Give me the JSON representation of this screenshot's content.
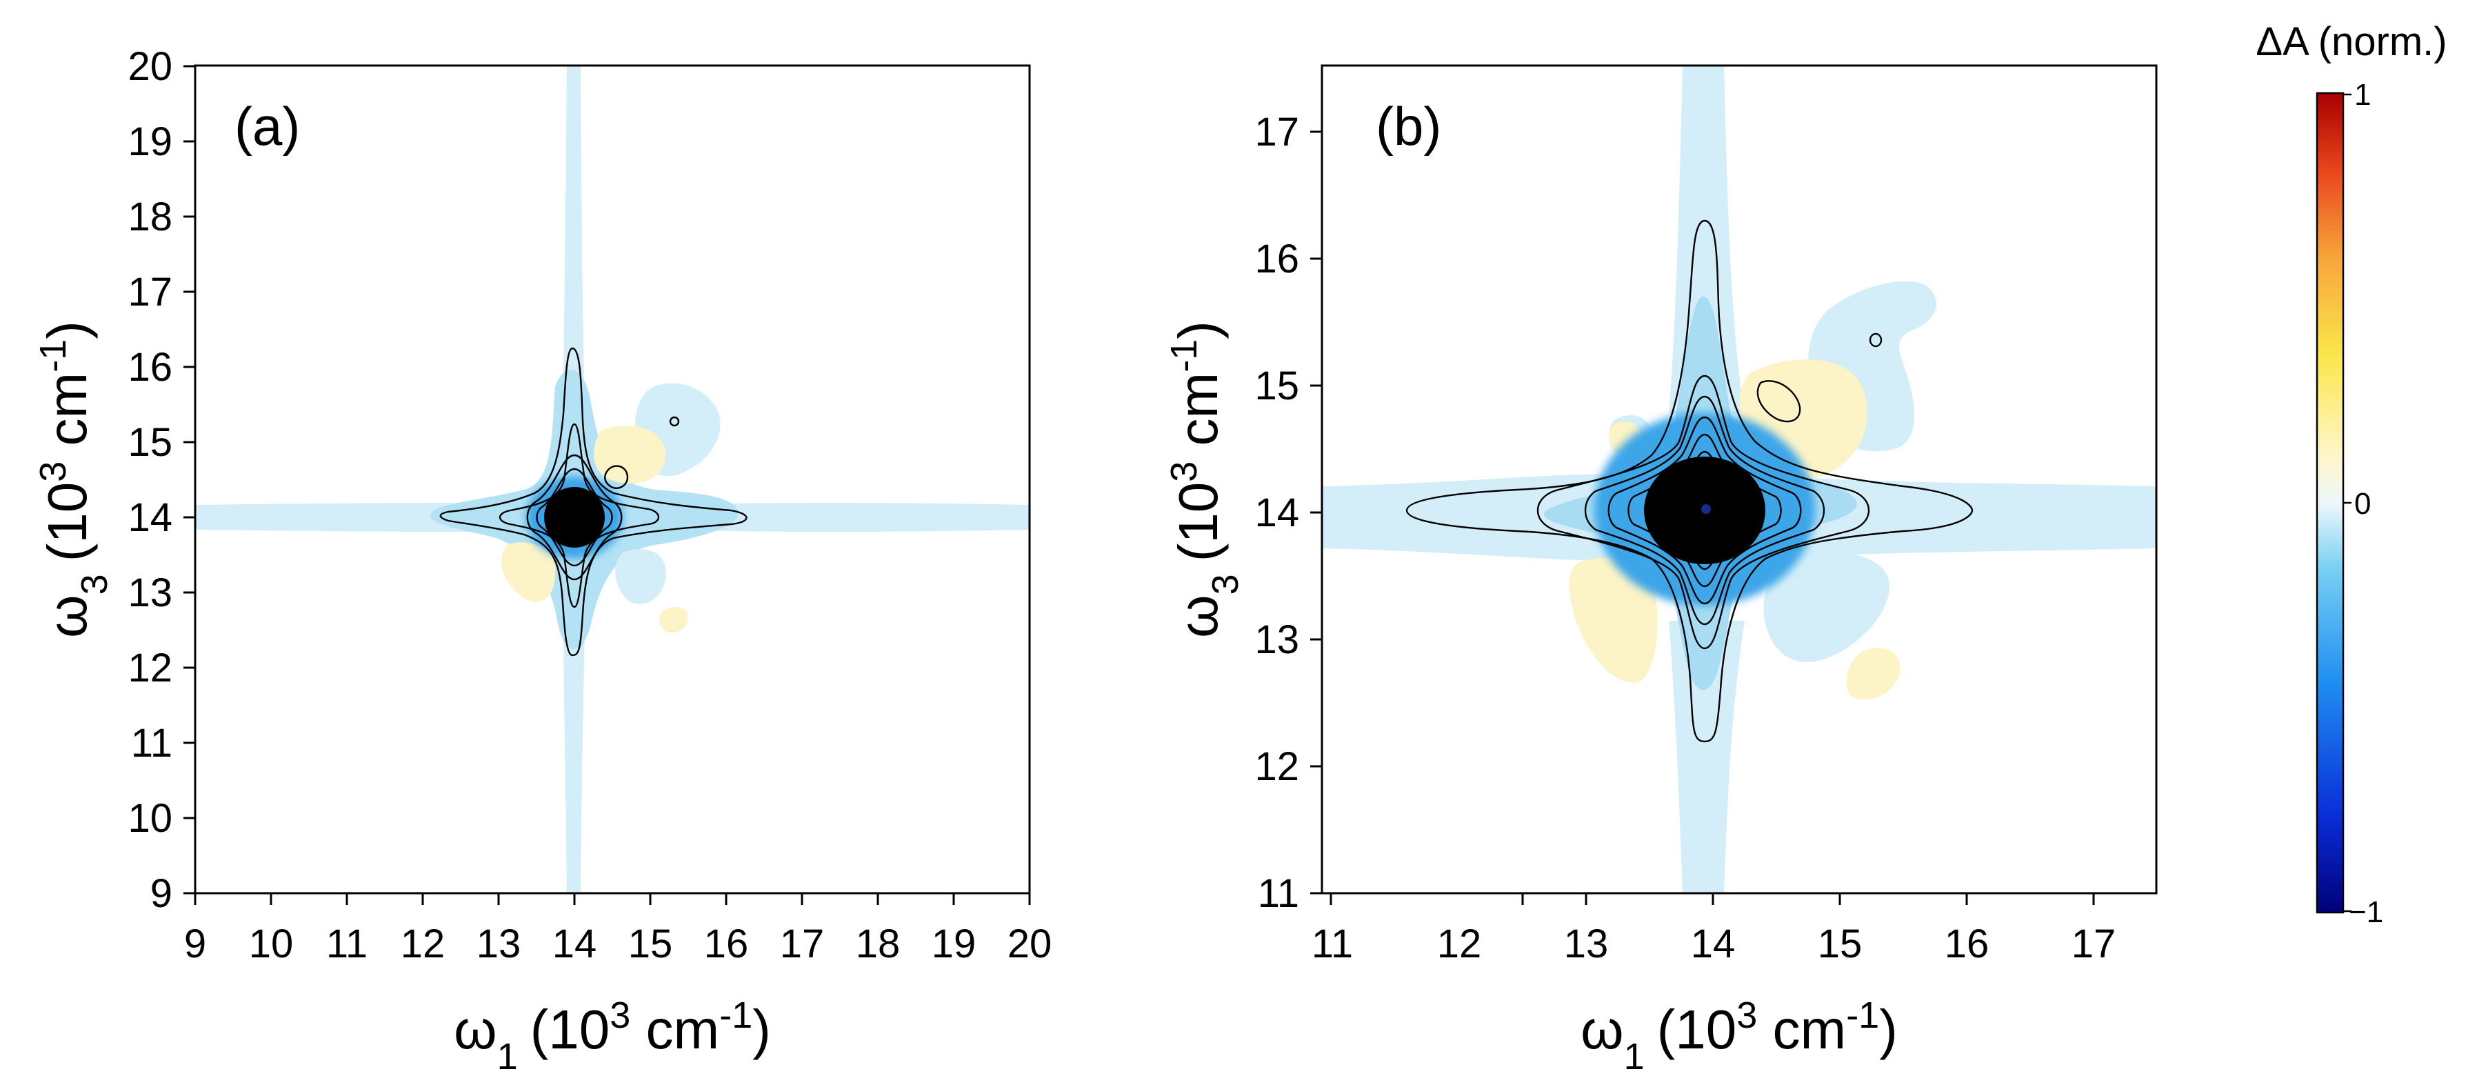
{
  "chart_data": [
    {
      "type": "heatmap",
      "panel_label": "(a)",
      "xlabel": {
        "symbol": "ω",
        "sub": "1",
        "prefix": "(10",
        "sup": "3",
        "unit": " cm",
        "unit_sup": "-1",
        "suffix": ")"
      },
      "ylabel": {
        "symbol": "ω",
        "sub": "3",
        "prefix": "(10",
        "sup": "3",
        "unit": " cm",
        "unit_sup": "-1",
        "suffix": ")"
      },
      "xlim": [
        9,
        20
      ],
      "ylim": [
        9,
        20
      ],
      "xticks": [
        "9",
        "10",
        "11",
        "12",
        "13",
        "14",
        "15",
        "16",
        "17",
        "18",
        "19",
        "20"
      ],
      "yticks": [
        "9",
        "10",
        "11",
        "12",
        "13",
        "14",
        "15",
        "16",
        "17",
        "18",
        "19",
        "20"
      ],
      "diagonal_peak": {
        "omega1": 14.0,
        "omega3": 14.0,
        "value": -1
      },
      "cross_peaks": [
        {
          "omega1": 14.5,
          "omega3": 14.55,
          "sign": "positive"
        },
        {
          "omega1": 15.3,
          "omega3": 15.3,
          "sign": "negative"
        },
        {
          "omega1": 13.4,
          "omega3": 13.5,
          "sign": "positive"
        },
        {
          "omega1": 15.4,
          "omega3": 12.6,
          "sign": "positive"
        }
      ]
    },
    {
      "type": "heatmap",
      "panel_label": "(b)",
      "xlabel": {
        "symbol": "ω",
        "sub": "1",
        "prefix": "(10",
        "sup": "3",
        "unit": " cm",
        "unit_sup": "-1",
        "suffix": ")"
      },
      "ylabel": {
        "symbol": "ω",
        "sub": "3",
        "prefix": "(10",
        "sup": "3",
        "unit": " cm",
        "unit_sup": "-1",
        "suffix": ")"
      },
      "xlim": [
        10.9,
        17.5
      ],
      "ylim": [
        10.95,
        17.5
      ],
      "xticks": [
        "11",
        "12",
        "13",
        "14",
        "15",
        "16",
        "17"
      ],
      "yticks": [
        "11",
        "12",
        "13",
        "14",
        "15",
        "16",
        "17"
      ],
      "diagonal_peak": {
        "omega1": 13.95,
        "omega3": 14.0,
        "value": -1
      },
      "cross_peaks": [
        {
          "omega1": 14.45,
          "omega3": 14.55,
          "sign": "positive"
        },
        {
          "omega1": 15.3,
          "omega3": 15.3,
          "sign": "negative"
        },
        {
          "omega1": 13.35,
          "omega3": 13.35,
          "sign": "positive"
        },
        {
          "omega1": 15.35,
          "omega3": 12.7,
          "sign": "positive"
        }
      ]
    }
  ],
  "colorbar": {
    "title": "ΔA (norm.)",
    "ticks": [
      "1",
      "0",
      "−1"
    ],
    "range": [
      -1,
      1
    ],
    "colors": [
      "#00007a",
      "#0a2fd8",
      "#1e8ef0",
      "#78d0f2",
      "#e6f6fc",
      "#fffbe0",
      "#fbe64a",
      "#f7a53a",
      "#ea4a1e",
      "#a80000"
    ]
  },
  "colors": {
    "weak_negative": "#d3eef8",
    "mid_negative": "#a8dcf3",
    "strong_negative": "#3da6e8",
    "weak_positive": "#fcf3c6",
    "contour": "#000000"
  }
}
